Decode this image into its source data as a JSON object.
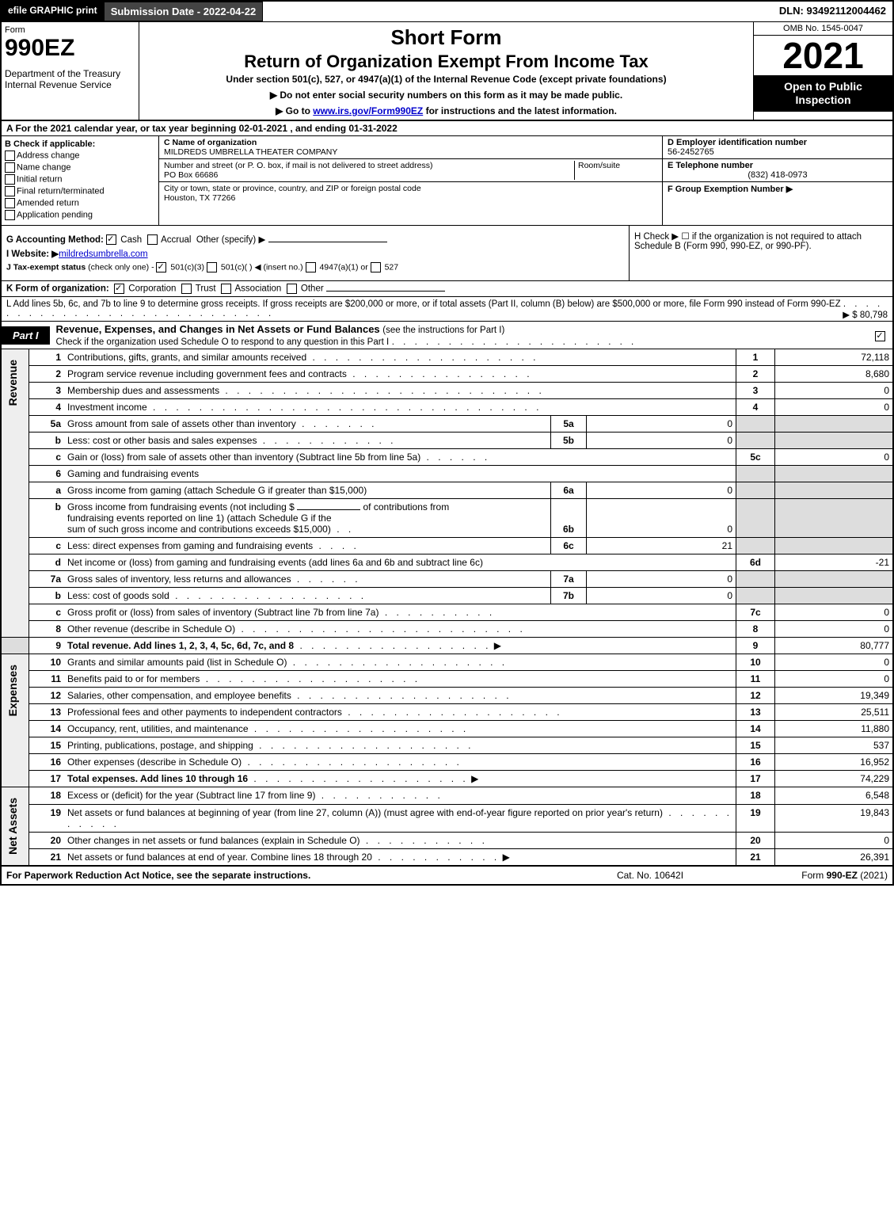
{
  "topbar": {
    "efile": "efile GRAPHIC print",
    "subdate_label": "Submission Date - 2022-04-22",
    "dln": "DLN: 93492112004462"
  },
  "header": {
    "form_label": "Form",
    "form_no": "990EZ",
    "dept": "Department of the Treasury\nInternal Revenue Service",
    "short": "Short Form",
    "main": "Return of Organization Exempt From Income Tax",
    "under": "Under section 501(c), 527, or 4947(a)(1) of the Internal Revenue Code (except private foundations)",
    "note1": "▶ Do not enter social security numbers on this form as it may be made public.",
    "note2_pre": "▶ Go to ",
    "note2_link": "www.irs.gov/Form990EZ",
    "note2_post": " for instructions and the latest information.",
    "omb": "OMB No. 1545-0047",
    "year": "2021",
    "inspect": "Open to Public Inspection"
  },
  "row_a": "A  For the 2021 calendar year, or tax year beginning 02-01-2021 , and ending 01-31-2022",
  "col_b": {
    "label": "B  Check if applicable:",
    "addr_change": "Address change",
    "name_change": "Name change",
    "initial": "Initial return",
    "final": "Final return/terminated",
    "amended": "Amended return",
    "pending": "Application pending"
  },
  "col_c": {
    "name_label": "C Name of organization",
    "name": "MILDREDS UMBRELLA THEATER COMPANY",
    "street_label": "Number and street (or P. O. box, if mail is not delivered to street address)",
    "room_label": "Room/suite",
    "street": "PO Box 66686",
    "city_label": "City or town, state or province, country, and ZIP or foreign postal code",
    "city": "Houston, TX  77266"
  },
  "col_de": {
    "d_label": "D Employer identification number",
    "ein": "56-2452765",
    "e_label": "E Telephone number",
    "phone": "(832) 418-0973",
    "f_label": "F Group Exemption Number  ▶"
  },
  "section_ghi": {
    "g_label": "G Accounting Method:",
    "g_cash": "Cash",
    "g_accrual": "Accrual",
    "g_other": "Other (specify) ▶",
    "i_label": "I Website: ▶",
    "website": "mildredsumbrella.com",
    "j_label": "J Tax-exempt status",
    "j_sub": "(check only one) -",
    "j_501c3": "501(c)(3)",
    "j_501c": "501(c)(  ) ◀ (insert no.)",
    "j_4947": "4947(a)(1) or",
    "j_527": "527",
    "h_text": "H  Check ▶ ☐ if the organization is not required to attach Schedule B (Form 990, 990-EZ, or 990-PF)."
  },
  "line_k": {
    "label": "K Form of organization:",
    "corp": "Corporation",
    "trust": "Trust",
    "assoc": "Association",
    "other": "Other"
  },
  "line_l": {
    "text": "L Add lines 5b, 6c, and 7b to line 9 to determine gross receipts. If gross receipts are $200,000 or more, or if total assets (Part II, column (B) below) are $500,000 or more, file Form 990 instead of Form 990-EZ",
    "amount": "▶ $ 80,798"
  },
  "part1": {
    "label": "Part I",
    "title": "Revenue, Expenses, and Changes in Net Assets or Fund Balances",
    "sub": "(see the instructions for Part I)",
    "schedo": "Check if the organization used Schedule O to respond to any question in this Part I"
  },
  "revenue": [
    {
      "n": "1",
      "desc": "Contributions, gifts, grants, and similar amounts received",
      "rlbl": "1",
      "rval": "72,118"
    },
    {
      "n": "2",
      "desc": "Program service revenue including government fees and contracts",
      "rlbl": "2",
      "rval": "8,680"
    },
    {
      "n": "3",
      "desc": "Membership dues and assessments",
      "rlbl": "3",
      "rval": "0"
    },
    {
      "n": "4",
      "desc": "Investment income",
      "rlbl": "4",
      "rval": "0"
    }
  ],
  "line5": {
    "a_desc": "Gross amount from sale of assets other than inventory",
    "a_lbl": "5a",
    "a_val": "0",
    "b_desc": "Less: cost or other basis and sales expenses",
    "b_lbl": "5b",
    "b_val": "0",
    "c_desc": "Gain or (loss) from sale of assets other than inventory (Subtract line 5b from line 5a)",
    "c_lbl": "5c",
    "c_val": "0"
  },
  "line6": {
    "header": "Gaming and fundraising events",
    "a_desc": "Gross income from gaming (attach Schedule G if greater than $15,000)",
    "a_lbl": "6a",
    "a_val": "0",
    "b_desc1": "Gross income from fundraising events (not including $",
    "b_desc2": "of contributions from",
    "b_desc3": "fundraising events reported on line 1) (attach Schedule G if the",
    "b_desc4": "sum of such gross income and contributions exceeds $15,000)",
    "b_lbl": "6b",
    "b_val": "0",
    "c_desc": "Less: direct expenses from gaming and fundraising events",
    "c_lbl": "6c",
    "c_val": "21",
    "d_desc": "Net income or (loss) from gaming and fundraising events (add lines 6a and 6b and subtract line 6c)",
    "d_lbl": "6d",
    "d_val": "-21"
  },
  "line7": {
    "a_desc": "Gross sales of inventory, less returns and allowances",
    "a_lbl": "7a",
    "a_val": "0",
    "b_desc": "Less: cost of goods sold",
    "b_lbl": "7b",
    "b_val": "0",
    "c_desc": "Gross profit or (loss) from sales of inventory (Subtract line 7b from line 7a)",
    "c_lbl": "7c",
    "c_val": "0"
  },
  "line8": {
    "desc": "Other revenue (describe in Schedule O)",
    "lbl": "8",
    "val": "0"
  },
  "line9": {
    "desc": "Total revenue. Add lines 1, 2, 3, 4, 5c, 6d, 7c, and 8",
    "lbl": "9",
    "val": "80,777"
  },
  "expenses": [
    {
      "n": "10",
      "desc": "Grants and similar amounts paid (list in Schedule O)",
      "rlbl": "10",
      "rval": "0"
    },
    {
      "n": "11",
      "desc": "Benefits paid to or for members",
      "rlbl": "11",
      "rval": "0"
    },
    {
      "n": "12",
      "desc": "Salaries, other compensation, and employee benefits",
      "rlbl": "12",
      "rval": "19,349"
    },
    {
      "n": "13",
      "desc": "Professional fees and other payments to independent contractors",
      "rlbl": "13",
      "rval": "25,511"
    },
    {
      "n": "14",
      "desc": "Occupancy, rent, utilities, and maintenance",
      "rlbl": "14",
      "rval": "11,880"
    },
    {
      "n": "15",
      "desc": "Printing, publications, postage, and shipping",
      "rlbl": "15",
      "rval": "537"
    },
    {
      "n": "16",
      "desc": "Other expenses (describe in Schedule O)",
      "rlbl": "16",
      "rval": "16,952"
    },
    {
      "n": "17",
      "desc": "Total expenses. Add lines 10 through 16",
      "rlbl": "17",
      "rval": "74,229",
      "bold": true,
      "arrow": true
    }
  ],
  "netassets": [
    {
      "n": "18",
      "desc": "Excess or (deficit) for the year (Subtract line 17 from line 9)",
      "rlbl": "18",
      "rval": "6,548"
    },
    {
      "n": "19",
      "desc": "Net assets or fund balances at beginning of year (from line 27, column (A)) (must agree with end-of-year figure reported on prior year's return)",
      "rlbl": "19",
      "rval": "19,843"
    },
    {
      "n": "20",
      "desc": "Other changes in net assets or fund balances (explain in Schedule O)",
      "rlbl": "20",
      "rval": "0"
    },
    {
      "n": "21",
      "desc": "Net assets or fund balances at end of year. Combine lines 18 through 20",
      "rlbl": "21",
      "rval": "26,391",
      "arrow": true
    }
  ],
  "footer": {
    "left": "For Paperwork Reduction Act Notice, see the separate instructions.",
    "mid": "Cat. No. 10642I",
    "right_pre": "Form ",
    "right_bold": "990-EZ",
    "right_post": " (2021)"
  },
  "side_labels": {
    "revenue": "Revenue",
    "expenses": "Expenses",
    "netassets": "Net Assets"
  },
  "colors": {
    "shade": "#dddddd",
    "black": "#000000"
  }
}
